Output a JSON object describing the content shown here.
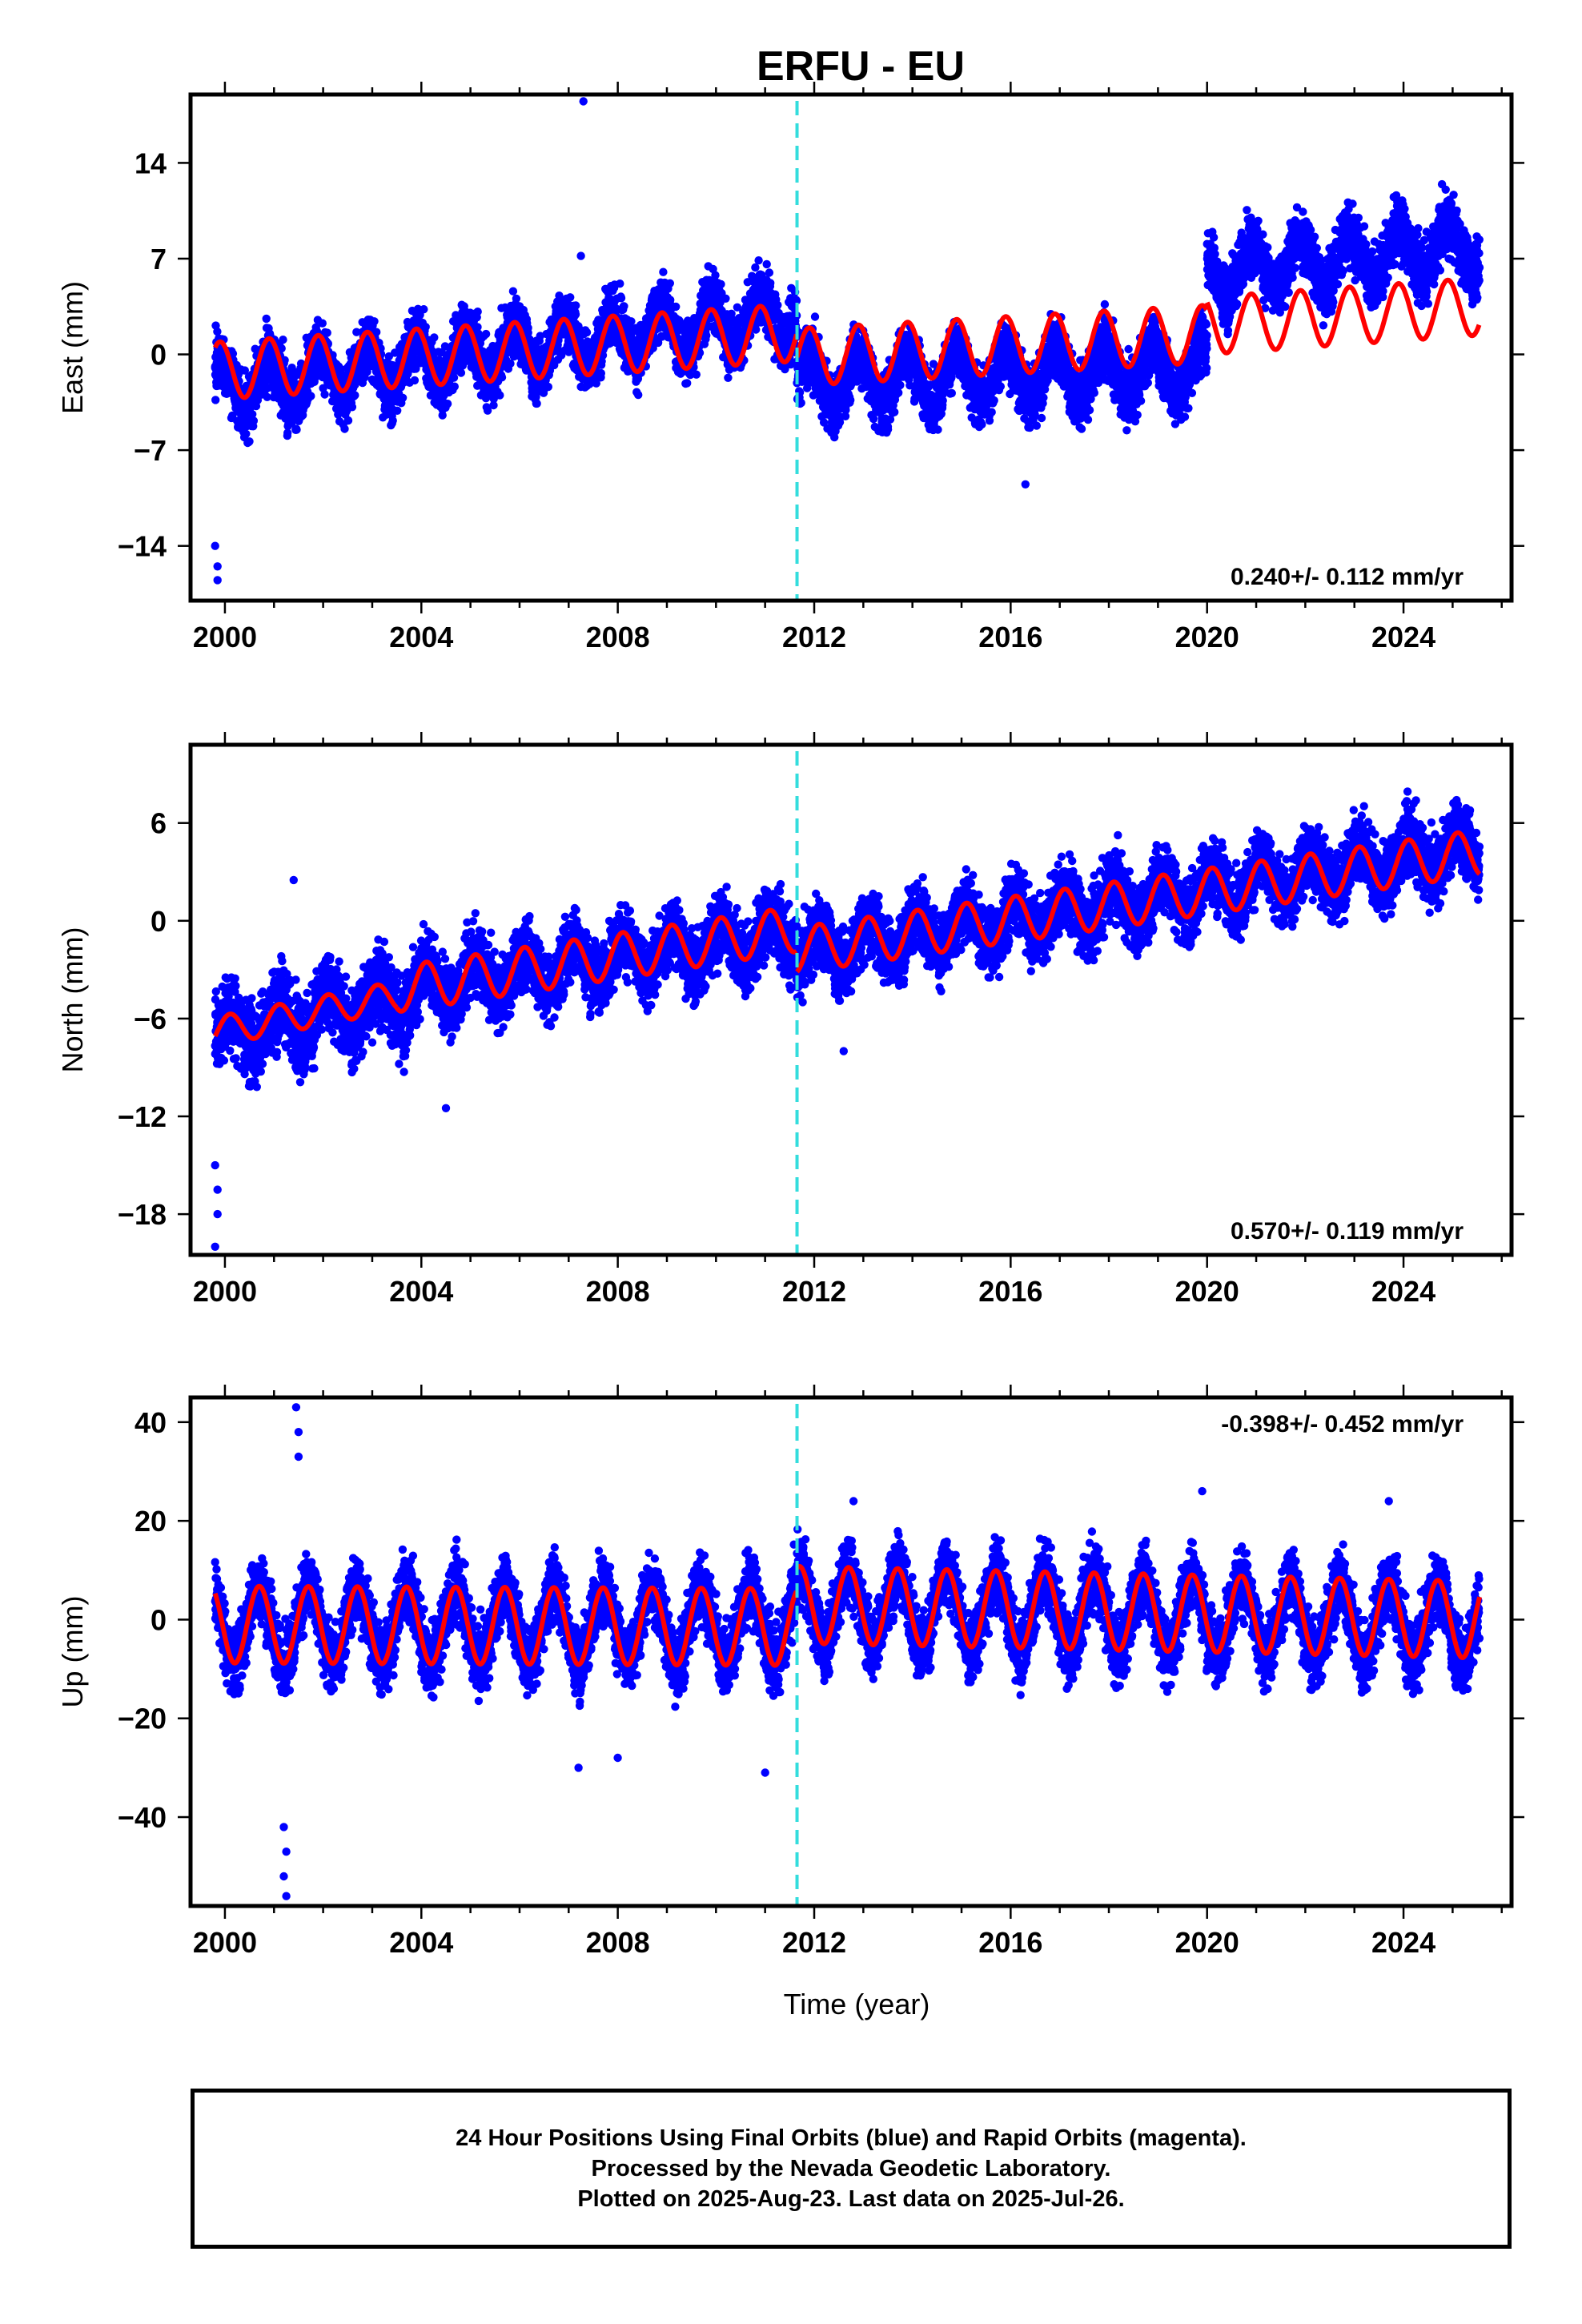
{
  "title": "ERFU - EU",
  "x_axis_label": "Time (year)",
  "colors": {
    "final_orbits": "#0000ff",
    "model_fit": "#ff0000",
    "offset_line": "#33dddd"
  },
  "footer": {
    "line1": "24 Hour Positions Using Final Orbits (blue) and Rapid Orbits (magenta).",
    "line2": "Processed by the Nevada Geodetic Laboratory.",
    "line3": "Plotted on 2025-Aug-23. Last data on 2025-Jul-26."
  },
  "chart_data": [
    {
      "type": "scatter",
      "title": "ERFU - EU",
      "ylabel": "East (mm)",
      "xlabel": "",
      "xlim": [
        1999.3,
        2026.2
      ],
      "ylim": [
        -18,
        19
      ],
      "x_ticks": [
        "2000",
        "2004",
        "2008",
        "2012",
        "2016",
        "2020",
        "2024"
      ],
      "y_ticks": [
        "14",
        "7",
        "0",
        "-7",
        "-14"
      ],
      "x_tick_values": [
        2000,
        2004,
        2008,
        2012,
        2016,
        2020,
        2024
      ],
      "y_tick_values": [
        14,
        7,
        0,
        -7,
        -14
      ],
      "rate_text": "0.240+/- 0.112 mm/yr",
      "rate_position": "bottom-right",
      "offset_epoch": 2011.65,
      "series": [
        {
          "name": "Final Orbits (blue)",
          "kind": "daily positions",
          "segments": [
            {
              "start": 1999.8,
              "end": 2011.65,
              "trend": [
                -2.5,
                3.0
              ],
              "amp": 1.8,
              "phase": 0.35,
              "scatter": 1.6
            },
            {
              "start": 2011.65,
              "end": 2020.0,
              "trend": [
                -2.0,
                -1.0
              ],
              "amp": 1.8,
              "phase": 0.35,
              "scatter": 1.6
            },
            {
              "start": 2020.0,
              "end": 2025.55,
              "trend": [
                6.0,
                8.0
              ],
              "amp": 1.8,
              "phase": 0.35,
              "scatter": 1.6
            }
          ],
          "outliers": [
            [
              1999.8,
              -14
            ],
            [
              1999.85,
              -15.5
            ],
            [
              1999.85,
              -16.5
            ],
            [
              2007.3,
              18.5
            ],
            [
              2007.25,
              7.2
            ],
            [
              2016.3,
              -9.5
            ]
          ]
        },
        {
          "name": "Model fit",
          "kind": "line",
          "segments": [
            {
              "start": 1999.8,
              "end": 2011.65,
              "trend": [
                -1.2,
                1.6
              ],
              "amp": 2.1,
              "phase": 0.35
            },
            {
              "start": 2011.65,
              "end": 2020.0,
              "trend": [
                -0.2,
                1.5
              ],
              "amp": 2.1,
              "phase": 0.35
            },
            {
              "start": 2020.0,
              "end": 2025.55,
              "trend": [
                2.1,
                3.5
              ],
              "amp": 2.1,
              "phase": 0.35
            }
          ]
        }
      ]
    },
    {
      "type": "scatter",
      "ylabel": "North (mm)",
      "xlabel": "",
      "xlim": [
        1999.3,
        2026.2
      ],
      "ylim": [
        -20.5,
        10.8
      ],
      "x_ticks": [
        "2000",
        "2004",
        "2008",
        "2012",
        "2016",
        "2020",
        "2024"
      ],
      "y_ticks": [
        "6",
        "0",
        "-6",
        "-12",
        "-18"
      ],
      "x_tick_values": [
        2000,
        2004,
        2008,
        2012,
        2016,
        2020,
        2024
      ],
      "y_tick_values": [
        6,
        0,
        -6,
        -12,
        -18
      ],
      "rate_text": "0.570+/- 0.119 mm/yr",
      "rate_position": "bottom-right",
      "offset_epoch": 2011.65,
      "series": [
        {
          "name": "Final Orbits (blue)",
          "kind": "daily positions",
          "segments": [
            {
              "start": 1999.8,
              "end": 2004.0,
              "trend": [
                -7.0,
                -4.5
              ],
              "amp": 1.2,
              "phase": 0.15,
              "scatter": 1.8
            },
            {
              "start": 2004.0,
              "end": 2011.65,
              "trend": [
                -4.0,
                -0.8
              ],
              "amp": 1.2,
              "phase": 0.15,
              "scatter": 1.5
            },
            {
              "start": 2011.65,
              "end": 2025.55,
              "trend": [
                -2.0,
                4.5
              ],
              "amp": 1.2,
              "phase": 0.15,
              "scatter": 1.5
            }
          ],
          "outliers": [
            [
              1999.8,
              -15
            ],
            [
              1999.85,
              -16.5
            ],
            [
              1999.85,
              -18
            ],
            [
              1999.8,
              -20
            ],
            [
              2001.4,
              2.5
            ],
            [
              2004.5,
              -11.5
            ],
            [
              2012.6,
              -8
            ]
          ]
        },
        {
          "name": "Model fit",
          "kind": "line",
          "segments": [
            {
              "start": 1999.8,
              "end": 2003.5,
              "trend": [
                -6.8,
                -4.6
              ],
              "amp": 0.9,
              "phase": 0.15
            },
            {
              "start": 2003.5,
              "end": 2011.65,
              "trend": [
                -4.2,
                -0.5
              ],
              "amp": 1.4,
              "phase": 0.15
            },
            {
              "start": 2011.65,
              "end": 2025.55,
              "trend": [
                -1.8,
                4.2
              ],
              "amp": 1.4,
              "phase": 0.15
            }
          ]
        }
      ]
    },
    {
      "type": "scatter",
      "ylabel": "Up (mm)",
      "xlabel": "Time (year)",
      "xlim": [
        1999.3,
        2026.2
      ],
      "ylim": [
        -58,
        45
      ],
      "x_ticks": [
        "2000",
        "2004",
        "2008",
        "2012",
        "2016",
        "2020",
        "2024"
      ],
      "y_ticks": [
        "40",
        "20",
        "0",
        "-20",
        "-40"
      ],
      "x_tick_values": [
        2000,
        2004,
        2008,
        2012,
        2016,
        2020,
        2024
      ],
      "y_tick_values": [
        40,
        20,
        0,
        -20,
        -40
      ],
      "rate_text": "-0.398+/- 0.452 mm/yr",
      "rate_position": "top-right",
      "offset_epoch": 2011.65,
      "series": [
        {
          "name": "Final Orbits (blue)",
          "kind": "daily positions",
          "segments": [
            {
              "start": 1999.8,
              "end": 2011.65,
              "trend": [
                -1.0,
                -1.0
              ],
              "amp": 7.5,
              "phase": 0.55,
              "scatter": 5.0
            },
            {
              "start": 2011.65,
              "end": 2025.55,
              "trend": [
                3.0,
                -1.0
              ],
              "amp": 7.5,
              "phase": 0.55,
              "scatter": 5.0
            }
          ],
          "outliers": [
            [
              2001.2,
              -42
            ],
            [
              2001.25,
              -47
            ],
            [
              2001.2,
              -52
            ],
            [
              2001.25,
              -56
            ],
            [
              2001.5,
              33
            ],
            [
              2001.5,
              38
            ],
            [
              2001.45,
              43
            ],
            [
              2011.0,
              -31
            ],
            [
              2007.2,
              -30
            ],
            [
              2008.0,
              -28
            ],
            [
              2012.8,
              24
            ],
            [
              2023.7,
              24
            ],
            [
              2019.9,
              26
            ]
          ]
        },
        {
          "name": "Model fit",
          "kind": "line",
          "segments": [
            {
              "start": 1999.8,
              "end": 2011.65,
              "trend": [
                -1.0,
                -1.5
              ],
              "amp": 7.8,
              "phase": 0.55
            },
            {
              "start": 2011.65,
              "end": 2025.55,
              "trend": [
                3.0,
                0.0
              ],
              "amp": 7.8,
              "phase": 0.55
            }
          ]
        }
      ]
    }
  ]
}
